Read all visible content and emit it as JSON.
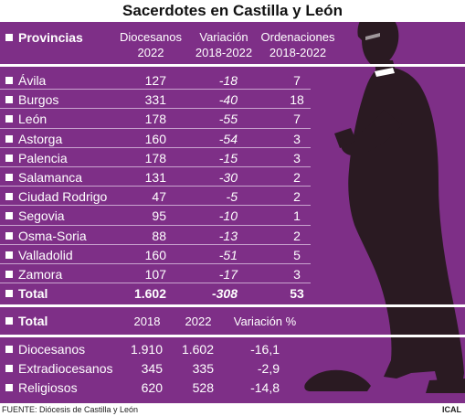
{
  "title": "Sacerdotes en Castilla y León",
  "colors": {
    "background": "#7e2f87",
    "text": "#ffffff",
    "silhouette": "#2a1a22"
  },
  "icons": {
    "bullet": "square-bullet-icon",
    "figure": "priest-silhouette-icon"
  },
  "table1": {
    "headers": {
      "provincias": "Provincias",
      "diocesanos": [
        "Diocesanos",
        "2022"
      ],
      "variacion": [
        "Variación",
        "2018-2022"
      ],
      "ordenaciones": [
        "Ordenaciones",
        "2018-2022"
      ]
    },
    "rows": [
      {
        "name": "Ávila",
        "diocesanos": "127",
        "variacion": "-18",
        "ordenaciones": "7"
      },
      {
        "name": "Burgos",
        "diocesanos": "331",
        "variacion": "-40",
        "ordenaciones": "18"
      },
      {
        "name": "León",
        "diocesanos": "178",
        "variacion": "-55",
        "ordenaciones": "7"
      },
      {
        "name": "Astorga",
        "diocesanos": "160",
        "variacion": "-54",
        "ordenaciones": "3"
      },
      {
        "name": "Palencia",
        "diocesanos": "178",
        "variacion": "-15",
        "ordenaciones": "3"
      },
      {
        "name": "Salamanca",
        "diocesanos": "131",
        "variacion": "-30",
        "ordenaciones": "2"
      },
      {
        "name": "Ciudad Rodrigo",
        "diocesanos": "47",
        "variacion": "-5",
        "ordenaciones": "2"
      },
      {
        "name": "Segovia",
        "diocesanos": "95",
        "variacion": "-10",
        "ordenaciones": "1"
      },
      {
        "name": "Osma-Soria",
        "diocesanos": "88",
        "variacion": "-13",
        "ordenaciones": "2"
      },
      {
        "name": "Valladolid",
        "diocesanos": "160",
        "variacion": "-51",
        "ordenaciones": "5"
      },
      {
        "name": "Zamora",
        "diocesanos": "107",
        "variacion": "-17",
        "ordenaciones": "3"
      }
    ],
    "total": {
      "name": "Total",
      "diocesanos": "1.602",
      "variacion": "-308",
      "ordenaciones": "53"
    }
  },
  "table2": {
    "headers": {
      "label": "Total",
      "y2018": "2018",
      "y2022": "2022",
      "variacion": "Variación %"
    },
    "rows": [
      {
        "name": "Diocesanos",
        "y2018": "1.910",
        "y2022": "1.602",
        "variacion": "-16,1"
      },
      {
        "name": "Extradiocesanos",
        "y2018": "345",
        "y2022": "335",
        "variacion": "-2,9"
      },
      {
        "name": "Religiosos",
        "y2018": "620",
        "y2022": "528",
        "variacion": "-14,8"
      }
    ]
  },
  "source": "FUENTE: Diócesis de Castilla y León",
  "credit": "ICAL",
  "chart_data": {
    "type": "table",
    "title": "Sacerdotes en Castilla y León",
    "columns": [
      "Provincias",
      "Diocesanos 2022",
      "Variación 2018-2022",
      "Ordenaciones 2018-2022"
    ],
    "rows": [
      [
        "Ávila",
        127,
        -18,
        7
      ],
      [
        "Burgos",
        331,
        -40,
        18
      ],
      [
        "León",
        178,
        -55,
        7
      ],
      [
        "Astorga",
        160,
        -54,
        3
      ],
      [
        "Palencia",
        178,
        -15,
        3
      ],
      [
        "Salamanca",
        131,
        -30,
        2
      ],
      [
        "Ciudad Rodrigo",
        47,
        -5,
        2
      ],
      [
        "Segovia",
        95,
        -10,
        1
      ],
      [
        "Osma-Soria",
        88,
        -13,
        2
      ],
      [
        "Valladolid",
        160,
        -51,
        5
      ],
      [
        "Zamora",
        107,
        -17,
        3
      ],
      [
        "Total",
        1602,
        -308,
        53
      ]
    ],
    "summary": {
      "columns": [
        "Total",
        "2018",
        "2022",
        "Variación %"
      ],
      "rows": [
        [
          "Diocesanos",
          1910,
          1602,
          -16.1
        ],
        [
          "Extradiocesanos",
          345,
          335,
          -2.9
        ],
        [
          "Religiosos",
          620,
          528,
          -14.8
        ]
      ]
    }
  }
}
